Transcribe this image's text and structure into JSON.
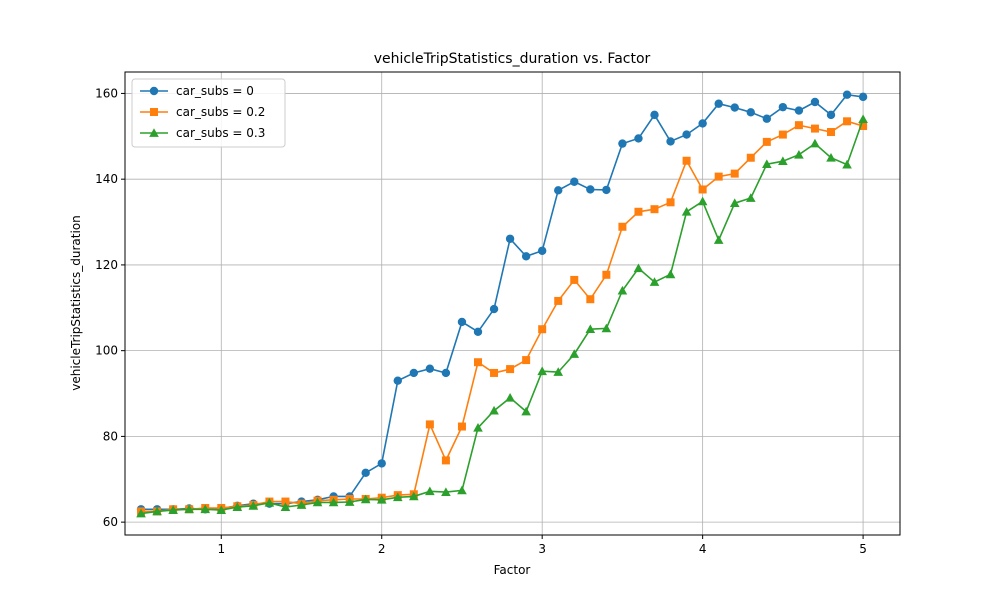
{
  "chart_data": {
    "type": "line",
    "title": "vehicleTripStatistics_duration vs. Factor",
    "xlabel": "Factor",
    "ylabel": "vehicleTripStatistics_duration",
    "xlim": [
      0.4,
      5.23
    ],
    "ylim": [
      57,
      165
    ],
    "xticks": [
      1,
      2,
      3,
      4,
      5
    ],
    "yticks": [
      60,
      80,
      100,
      120,
      140,
      160
    ],
    "grid": true,
    "legend_position": "top-left",
    "x": [
      0.5,
      0.6,
      0.7,
      0.8,
      0.9,
      1.0,
      1.1,
      1.2,
      1.3,
      1.4,
      1.5,
      1.6,
      1.7,
      1.8,
      1.9,
      2.0,
      2.1,
      2.2,
      2.3,
      2.4,
      2.5,
      2.6,
      2.7,
      2.8,
      2.9,
      3.0,
      3.1,
      3.2,
      3.3,
      3.4,
      3.5,
      3.6,
      3.7,
      3.8,
      3.9,
      4.0,
      4.1,
      4.2,
      4.3,
      4.4,
      4.5,
      4.6,
      4.7,
      4.8,
      4.9,
      5.0
    ],
    "series": [
      {
        "name": "car_subs = 0",
        "color": "#1f77b4",
        "marker": "circle",
        "values": [
          63.0,
          63.0,
          63.0,
          63.2,
          63.0,
          63.2,
          63.8,
          64.3,
          64.3,
          64.3,
          64.8,
          65.2,
          66.0,
          66.0,
          71.5,
          73.7,
          93.0,
          94.8,
          95.8,
          94.8,
          106.7,
          104.4,
          109.7,
          126.1,
          122.0,
          123.3,
          137.4,
          139.4,
          137.6,
          137.5,
          148.3,
          149.5,
          155.0,
          148.8,
          150.4,
          153.0,
          157.6,
          156.7,
          155.6,
          154.1,
          156.8,
          156.0,
          158.0,
          155.0,
          159.7,
          159.2
        ]
      },
      {
        "name": "car_subs = 0.2",
        "color": "#ff7f0e",
        "marker": "square",
        "values": [
          62.5,
          62.5,
          63.0,
          63.0,
          63.3,
          63.3,
          63.7,
          64.0,
          64.8,
          64.8,
          64.3,
          65.0,
          65.2,
          65.4,
          65.4,
          65.7,
          66.3,
          66.5,
          82.8,
          74.4,
          82.3,
          97.3,
          94.8,
          95.7,
          97.8,
          105.0,
          111.6,
          116.5,
          112.0,
          117.7,
          128.9,
          132.4,
          133.0,
          134.6,
          144.3,
          137.6,
          140.6,
          141.3,
          145.0,
          148.7,
          150.4,
          152.6,
          151.8,
          151.0,
          153.5,
          152.4
        ]
      },
      {
        "name": "car_subs = 0.3",
        "color": "#2ca02c",
        "marker": "triangle",
        "values": [
          62.0,
          62.5,
          62.8,
          63.0,
          63.0,
          62.8,
          63.5,
          63.8,
          64.5,
          63.5,
          64.0,
          64.6,
          64.6,
          64.7,
          65.3,
          65.2,
          65.8,
          66.0,
          67.2,
          67.0,
          67.4,
          82.0,
          86.0,
          89.0,
          85.8,
          95.2,
          95.0,
          99.2,
          105.0,
          105.2,
          114.0,
          119.2,
          116.0,
          117.8,
          132.4,
          134.8,
          125.8,
          134.4,
          135.6,
          143.5,
          144.2,
          145.7,
          148.3,
          145.0,
          143.4,
          154.0
        ]
      }
    ]
  }
}
